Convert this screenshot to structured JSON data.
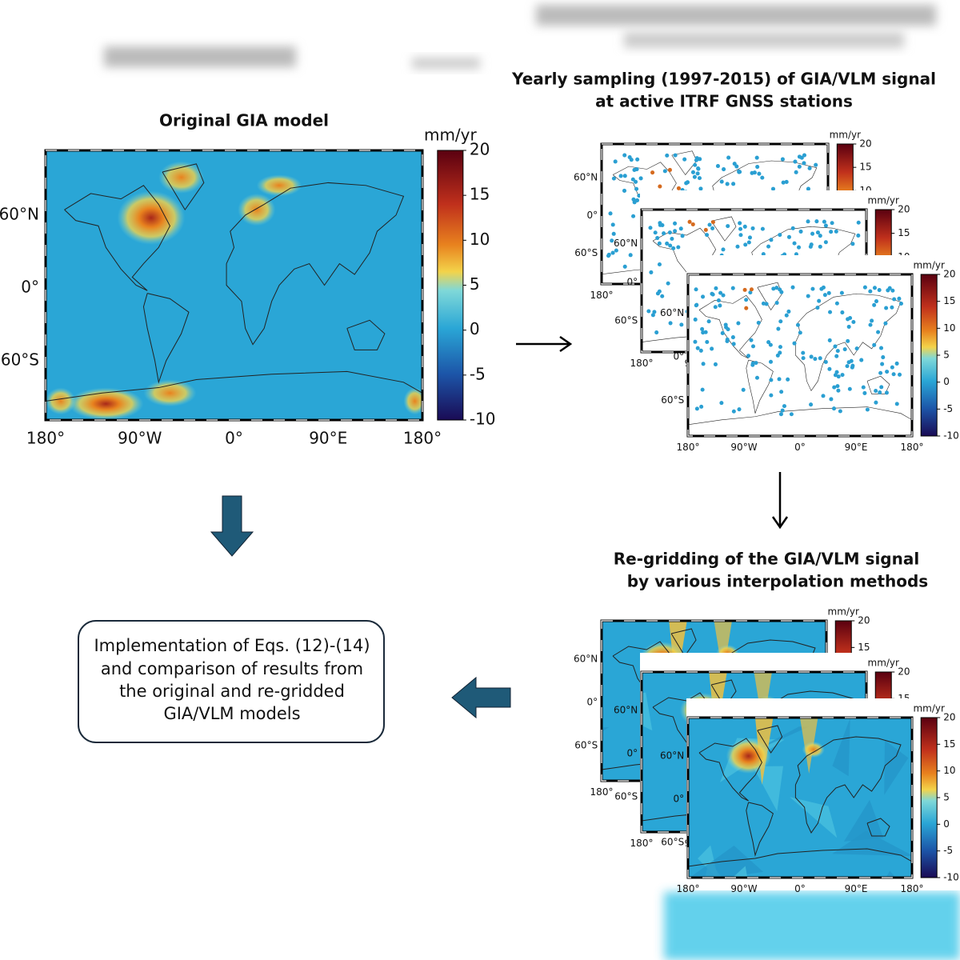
{
  "original": {
    "title": "Original GIA model",
    "unit": "mm/yr",
    "colorbar_ticks": [
      20,
      15,
      10,
      5,
      0,
      -5,
      -10
    ],
    "lat_labels": [
      "60°N",
      "0°",
      "60°S"
    ],
    "lon_labels": [
      "180°",
      "90°W",
      "0°",
      "90°E",
      "180°"
    ]
  },
  "sampling": {
    "title_lines": [
      "Yearly sampling (1997-2015) of GIA/VLM signal",
      "at active ITRF GNSS stations"
    ]
  },
  "regridding": {
    "title_lines": [
      "Re-gridding of the GIA/VLM signal",
      "by various interpolation methods"
    ]
  },
  "result_box": {
    "lines": [
      "Implementation of Eqs. (12)-(14)",
      "and comparison of results from",
      "the original and re-gridded",
      "GIA/VLM models"
    ]
  }
}
